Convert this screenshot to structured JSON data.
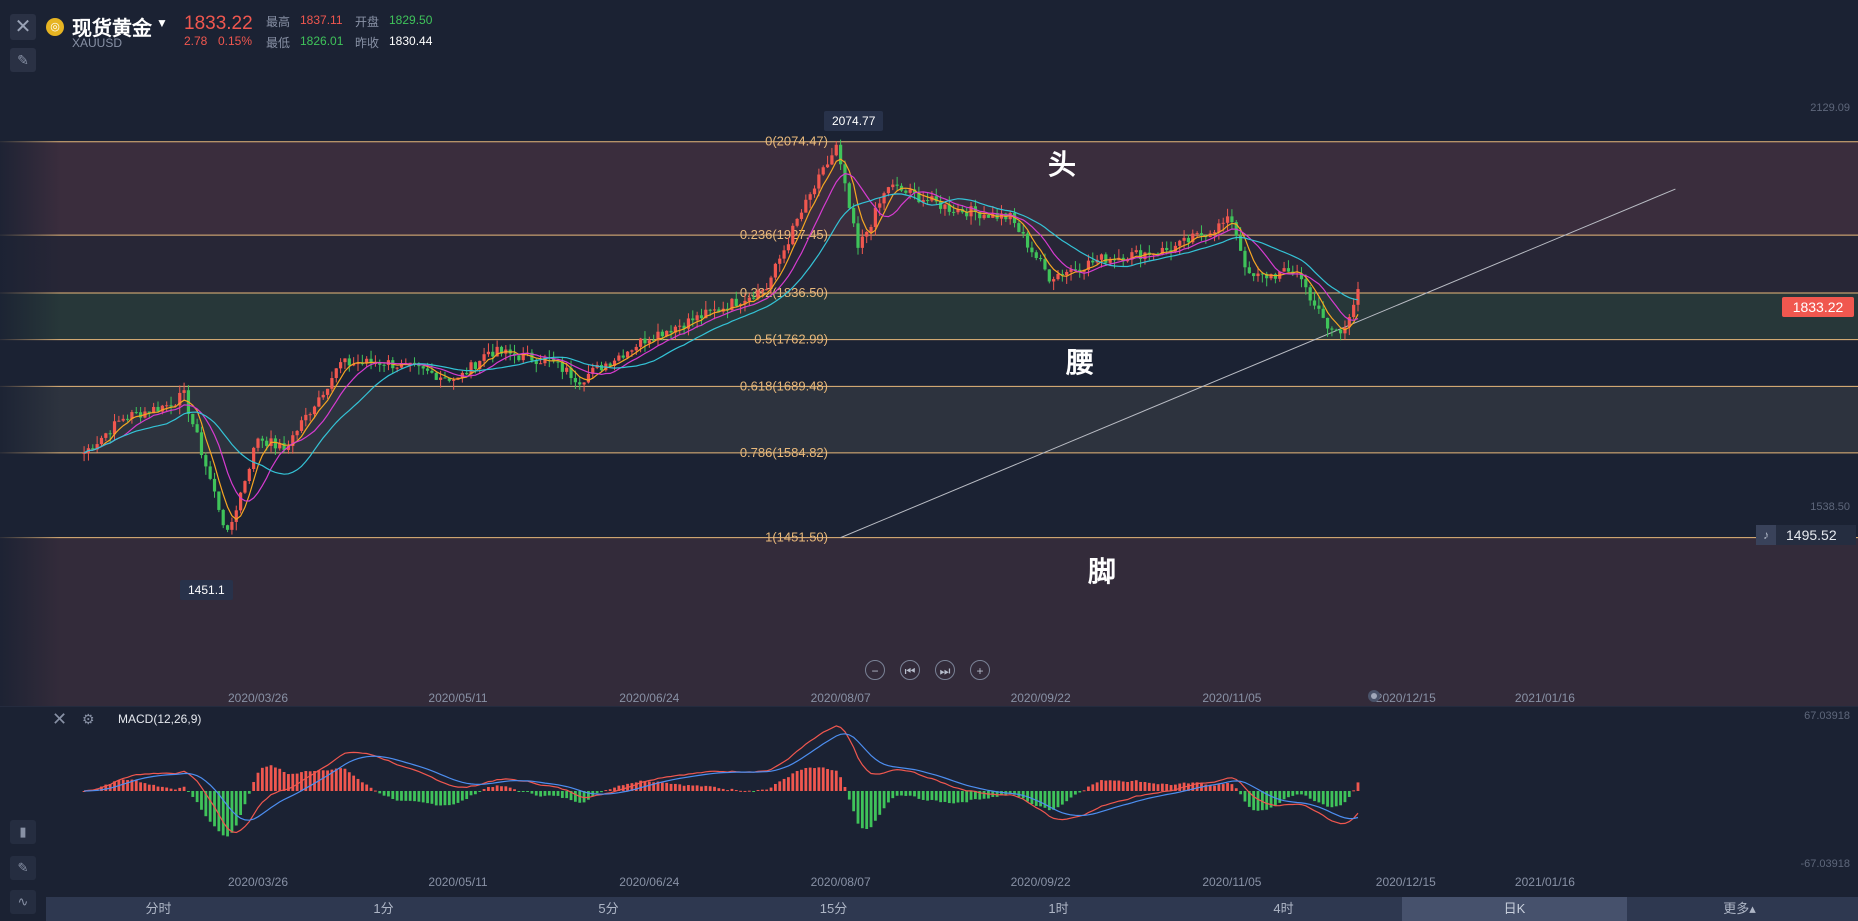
{
  "header": {
    "name": "现货黄金",
    "symbol": "XAUUSD",
    "price": "1833.22",
    "change": "2.78",
    "change_pct": "0.15%",
    "high_label": "最高",
    "high": "1837.11",
    "open_label": "开盘",
    "open": "1829.50",
    "low_label": "最低",
    "low": "1826.01",
    "prev_label": "昨收",
    "prev_close": "1830.44"
  },
  "annotations": {
    "head": "头",
    "waist": "腰",
    "foot": "脚",
    "peak_tag": "2074.77",
    "trough_tag": "1451.1",
    "current_price": "1833.22",
    "alert_price": "1495.52",
    "axis_top": "2129.09",
    "axis_mid": "1538.50"
  },
  "macd": {
    "label": "MACD(12,26,9)",
    "axis_top": "67.03918",
    "axis_bottom": "-67.03918"
  },
  "tabs": [
    {
      "label": "分时",
      "active": false
    },
    {
      "label": "1分",
      "active": false
    },
    {
      "label": "5分",
      "active": false
    },
    {
      "label": "15分",
      "active": false
    },
    {
      "label": "1时",
      "active": false
    },
    {
      "label": "4时",
      "active": false
    },
    {
      "label": "日K",
      "active": true
    },
    {
      "label": "更多▴",
      "active": false
    }
  ],
  "icons": [
    "close-icon",
    "crosshair-tool-icon",
    "gold-coin-icon",
    "dropdown-caret-icon",
    "zoom-out-icon",
    "step-back-icon",
    "step-forward-icon",
    "zoom-in-icon",
    "bell-icon",
    "gear-icon",
    "candle-type-icon",
    "draw-pen-icon",
    "indicator-icon"
  ],
  "colors": {
    "up": "#f0574f",
    "down": "#3fc35a",
    "ma5": "#f5a623",
    "ma10": "#d63bd0",
    "ma20": "#34c3d6",
    "fib": "#e8b87a"
  },
  "chart_data": {
    "type": "candlestick",
    "ylim": [
      1410,
      2129.09
    ],
    "x_ticks": [
      "2020/03/26",
      "2020/05/11",
      "2020/06/24",
      "2020/08/07",
      "2020/09/22",
      "2020/11/05",
      "2020/12/15",
      "2021/01/16"
    ],
    "fib_levels": [
      {
        "label": "0(2074.47)",
        "value": 2074.47
      },
      {
        "label": "0.236(1927.45)",
        "value": 1927.45
      },
      {
        "label": "0.382(1836.50)",
        "value": 1836.5
      },
      {
        "label": "0.5(1762.99)",
        "value": 1762.99
      },
      {
        "label": "0.618(1689.48)",
        "value": 1689.48
      },
      {
        "label": "0.786(1584.82)",
        "value": 1584.82
      },
      {
        "label": "1(1451.50)",
        "value": 1451.5
      }
    ],
    "price_path": [
      [
        "2020/02/15",
        1585
      ],
      [
        "2020/02/24",
        1640
      ],
      [
        "2020/03/05",
        1660
      ],
      [
        "2020/03/09",
        1675
      ],
      [
        "2020/03/19",
        1455
      ],
      [
        "2020/03/26",
        1610
      ],
      [
        "2020/04/01",
        1590
      ],
      [
        "2020/04/14",
        1725
      ],
      [
        "2020/04/24",
        1728
      ],
      [
        "2020/05/11",
        1700
      ],
      [
        "2020/05/18",
        1745
      ],
      [
        "2020/06/01",
        1730
      ],
      [
        "2020/06/08",
        1700
      ],
      [
        "2020/06/24",
        1768
      ],
      [
        "2020/07/08",
        1805
      ],
      [
        "2020/07/21",
        1845
      ],
      [
        "2020/07/28",
        1950
      ],
      [
        "2020/08/06",
        2066
      ],
      [
        "2020/08/11",
        1905
      ],
      [
        "2020/08/18",
        2005
      ],
      [
        "2020/09/01",
        1970
      ],
      [
        "2020/09/15",
        1955
      ],
      [
        "2020/09/24",
        1862
      ],
      [
        "2020/10/06",
        1890
      ],
      [
        "2020/10/22",
        1905
      ],
      [
        "2020/11/05",
        1952
      ],
      [
        "2020/11/09",
        1860
      ],
      [
        "2020/11/20",
        1870
      ],
      [
        "2020/11/27",
        1780
      ],
      [
        "2020/11/30",
        1775
      ],
      [
        "2020/12/04",
        1835
      ]
    ],
    "trendline": [
      [
        "2020/08/07",
        1451.5
      ],
      [
        "2021/02/15",
        2000
      ]
    ]
  }
}
